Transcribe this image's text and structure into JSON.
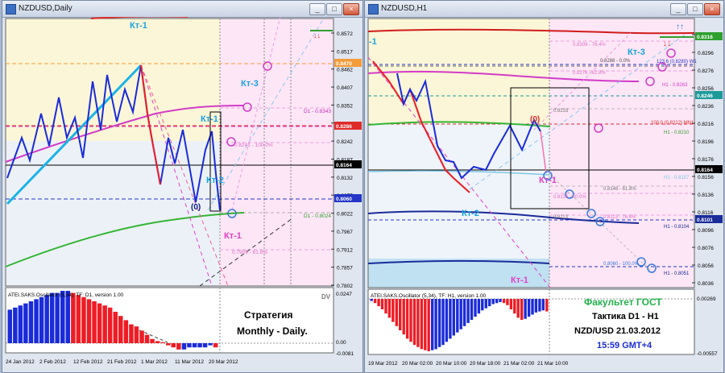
{
  "left": {
    "title": "NZDUSD,Daily",
    "price_scale": [
      "0.8572",
      "0.8517",
      "0.8462",
      "0.8407",
      "0.8352",
      "0.8297",
      "0.8242",
      "0.8187",
      "0.8132",
      "0.8077",
      "0.8022",
      "0.7967",
      "0.7912",
      "0.7857",
      "0.7802"
    ],
    "price_badges": {
      "orange": "0.8470",
      "red": "0.8286",
      "black": "0.8164",
      "blue": "0.8060"
    },
    "labels": {
      "kt1_top": "Кт-1",
      "kt3": "Кт-3",
      "kt1_right": "Кт-1",
      "kt2": "Кт-2",
      "zero": "(0)",
      "kt1_bottom": "Кт-1"
    },
    "level_labels": {
      "d1_8343": "D1 - 0.8343",
      "fib_8241": "0.8241 - 100.0%",
      "d1_8024": "D1 - 0.8024",
      "fib_7909": "0.7909 - 61.8%"
    },
    "osc_title": "ATEI.SAKS.Oscillator (5,34), TF: D1, version 1.00",
    "osc_scale": [
      "0.0247",
      "0.00",
      "-0.0081"
    ],
    "dv": "DV",
    "strategy_line1": "Стратегия",
    "strategy_line2": "Monthly - Daily.",
    "dates": [
      "24 Jan 2012",
      "2 Feb 2012",
      "12 Feb 2012",
      "21 Feb 2012",
      "1 Mar 2012",
      "11 Mar 2012",
      "20 Mar 2012"
    ],
    "osc_values": [
      0.016,
      0.017,
      0.018,
      0.019,
      0.02,
      0.021,
      0.022,
      0.023,
      0.024,
      0.024,
      0.025,
      0.025,
      0.024,
      0.023,
      0.022,
      0.021,
      0.02,
      0.019,
      0.018,
      0.017,
      0.015,
      0.013,
      0.011,
      0.009,
      0.008,
      0.006,
      0.004,
      0.002,
      0.001,
      0.0005,
      -0.001,
      -0.002,
      -0.003,
      -0.003,
      -0.002,
      -0.002,
      -0.002,
      -0.002,
      -0.001,
      -0.002
    ]
  },
  "right": {
    "title": "NZDUSD,H1",
    "price_scale": [
      "0.8316",
      "0.8296",
      "0.8276",
      "0.8256",
      "0.8236",
      "0.8216",
      "0.8196",
      "0.8176",
      "0.8156",
      "0.8136",
      "0.8116",
      "0.8096",
      "0.8076",
      "0.8056",
      "0.8036"
    ],
    "price_badges": {
      "green": "0.8316",
      "teal": "0.8246",
      "black": "0.8164",
      "darkblue": "0.8101"
    },
    "labels": {
      "kt1_left": "-1",
      "kt3": "Кт-3",
      "zero": "(0)",
      "kt1": "Кт-1",
      "kt2": "Кт-2",
      "kt1_bottom": "Кт-1"
    },
    "level_labels": {
      "a": "0.8309 - 76.4%",
      "b": "0.8288 - 0.0%",
      "c": "123.6 (0.8280) W1",
      "d": "0.8276 - 61.8%",
      "e": "H1 - 0.8263",
      "f": "0.8233",
      "g": "100.0 (0.8212) MN1",
      "h": "H1 - 0.8210",
      "i": "H1 - 0.8157",
      "j": "0.8146 - 61.8%",
      "k": "0.8136 - 50.0%",
      "l": "0.8113",
      "m": "0.8113 - 76.4%",
      "n": "H1 - 0.8104",
      "o": "0.8060 - 100.0%",
      "p": "H1 - 0.8051"
    },
    "osc_title": "ATEI.SAKS.Oscillator (5,34), TF: H1, version 1.00",
    "osc_scale": [
      "0.00269",
      "-0.00557"
    ],
    "faculty_line1": "Факультет ГОСТ",
    "faculty_line2": "Тактика D1 - H1",
    "faculty_line3": "NZD/USD 21.03.2012",
    "faculty_line4": "15:59 GMT+4",
    "dates": [
      "19 Mar 2012",
      "20 Mar 02:00",
      "20 Mar 10:00",
      "20 Mar 18:00",
      "21 Mar 02:00",
      "21 Mar 10:00"
    ],
    "osc_values": [
      -0.0002,
      -0.0004,
      -0.0007,
      -0.001,
      -0.0014,
      -0.0018,
      -0.0022,
      -0.0026,
      -0.003,
      -0.0034,
      -0.0038,
      -0.0041,
      -0.0044,
      -0.0046,
      -0.0048,
      -0.0049,
      -0.005,
      -0.0049,
      -0.0048,
      -0.0046,
      -0.0044,
      -0.0041,
      -0.0038,
      -0.0035,
      -0.0032,
      -0.0029,
      -0.0026,
      -0.0023,
      -0.002,
      -0.0017,
      -0.0014,
      -0.0011,
      -0.0009,
      -0.0007,
      -0.0005,
      -0.0004,
      -0.0003,
      -0.0004,
      -0.0006,
      -0.001,
      -0.0014,
      -0.0018,
      -0.002,
      -0.0019,
      -0.0017,
      -0.0015,
      -0.0013,
      -0.0012,
      -0.0011,
      -0.0012
    ]
  },
  "colors": {
    "up": "#1a2bd9",
    "down": "#ee1c25",
    "orange": "#f39c3a",
    "red_level": "#e02a2a",
    "magenta": "#e040c8",
    "pink": "#ff4fa8"
  }
}
